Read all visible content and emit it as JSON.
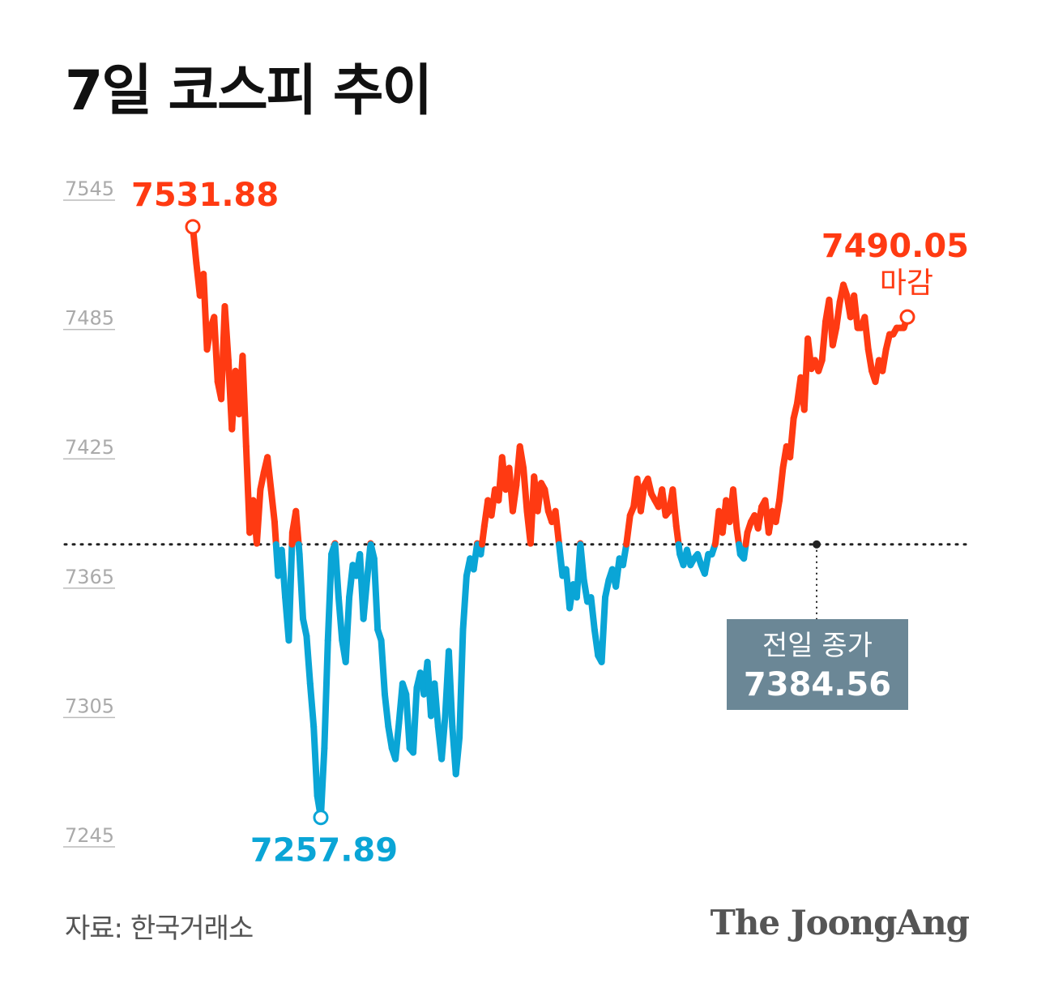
{
  "title": "7일 코스피 추이",
  "source": "자료: 한국거래소",
  "brand": "The JoongAng",
  "colors": {
    "up": "#ff3a12",
    "down": "#0aa5d6",
    "reference_box": "#6b8796",
    "axis_text": "#aaaaaa"
  },
  "chart_data": {
    "type": "line",
    "title": "7일 코스피 추이",
    "xlabel": "",
    "ylabel": "",
    "ylim": [
      7245,
      7545
    ],
    "yticks": [
      7245,
      7305,
      7365,
      7425,
      7485,
      7545
    ],
    "grid": false,
    "reference_line": {
      "value": 7384.56,
      "label": "전일 종가",
      "value_label": "7384.56"
    },
    "annotations": [
      {
        "label": "7531.88",
        "value": 7531.88,
        "kind": "high"
      },
      {
        "label": "7257.89",
        "value": 7257.89,
        "kind": "low"
      },
      {
        "label": "7490.05",
        "sublabel": "마감",
        "value": 7490.05,
        "kind": "close"
      }
    ],
    "y": [
      7531.88,
      7515,
      7500,
      7510,
      7475,
      7485,
      7490,
      7460,
      7452,
      7495,
      7470,
      7438,
      7465,
      7445,
      7472,
      7430,
      7390,
      7405,
      7385,
      7410,
      7418,
      7425,
      7410,
      7395,
      7370,
      7382,
      7360,
      7340,
      7390,
      7400,
      7380,
      7350,
      7342,
      7320,
      7300,
      7268,
      7257.89,
      7290,
      7340,
      7380,
      7385,
      7360,
      7340,
      7330,
      7360,
      7375,
      7370,
      7380,
      7350,
      7368,
      7385,
      7378,
      7345,
      7340,
      7315,
      7300,
      7290,
      7285,
      7302,
      7320,
      7315,
      7290,
      7288,
      7318,
      7325,
      7315,
      7330,
      7305,
      7320,
      7300,
      7285,
      7305,
      7335,
      7300,
      7278,
      7295,
      7345,
      7370,
      7378,
      7373,
      7385,
      7380,
      7393,
      7405,
      7398,
      7410,
      7405,
      7425,
      7410,
      7420,
      7400,
      7412,
      7430,
      7420,
      7400,
      7385,
      7416,
      7400,
      7413,
      7410,
      7400,
      7395,
      7400,
      7385,
      7370,
      7373,
      7355,
      7366,
      7360,
      7385,
      7368,
      7358,
      7360,
      7345,
      7333,
      7330,
      7360,
      7368,
      7373,
      7365,
      7378,
      7375,
      7385,
      7398,
      7402,
      7415,
      7400,
      7412,
      7415,
      7408,
      7405,
      7402,
      7410,
      7398,
      7400,
      7410,
      7393,
      7380,
      7375,
      7382,
      7375,
      7378,
      7380,
      7375,
      7371,
      7380,
      7380,
      7385,
      7400,
      7390,
      7405,
      7395,
      7410,
      7392,
      7380,
      7378,
      7390,
      7395,
      7398,
      7392,
      7402,
      7405,
      7390,
      7400,
      7395,
      7405,
      7420,
      7430,
      7425,
      7443,
      7450,
      7462,
      7447,
      7480,
      7466,
      7470,
      7465,
      7470,
      7488,
      7498,
      7477,
      7485,
      7497,
      7505,
      7500,
      7490,
      7500,
      7485,
      7485,
      7490,
      7475,
      7465,
      7460,
      7470,
      7465,
      7475,
      7482,
      7482,
      7485,
      7485,
      7485,
      7490.05
    ]
  }
}
